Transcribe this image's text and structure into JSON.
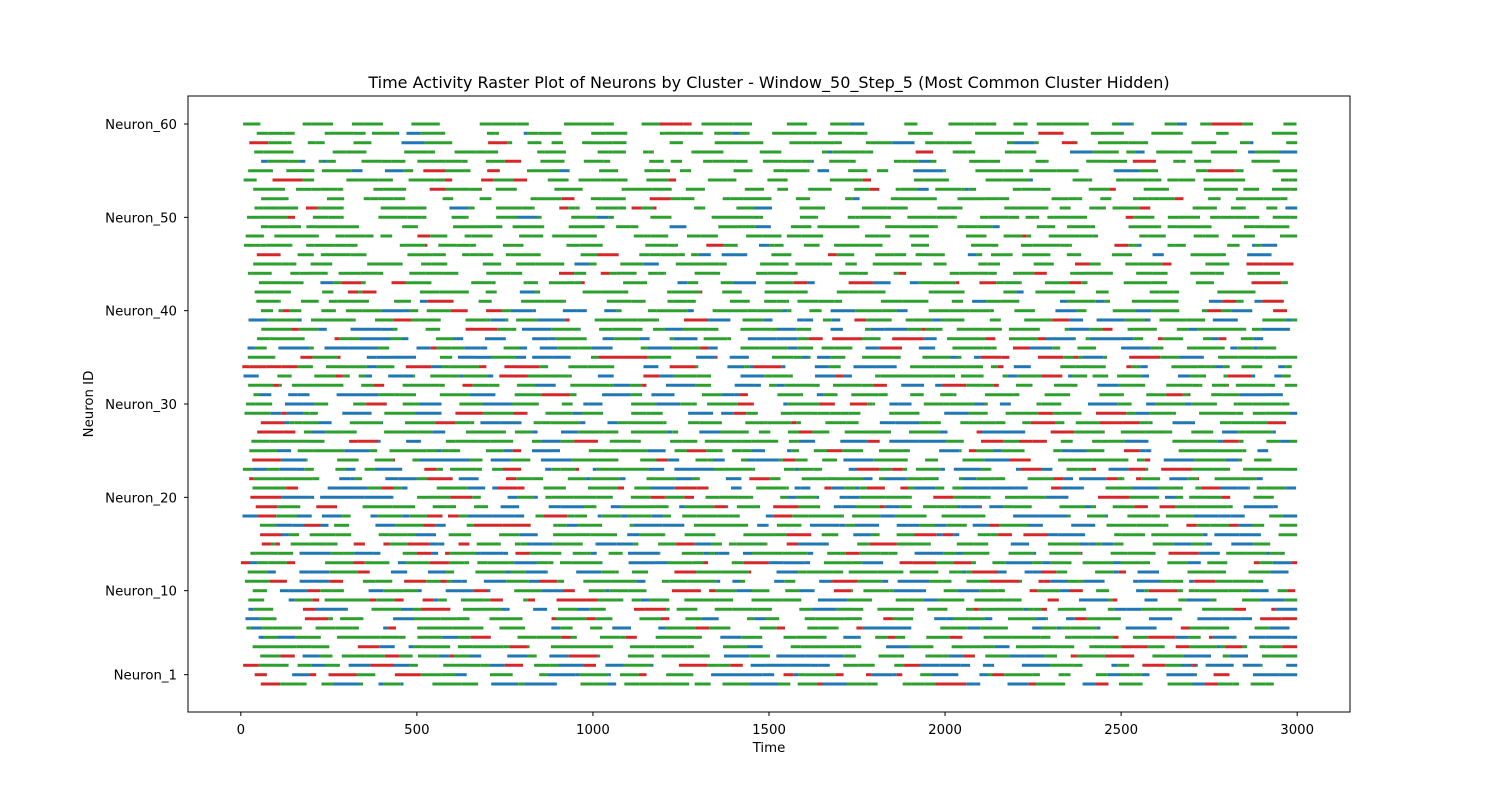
{
  "chart_data": {
    "type": "raster",
    "title": "Time Activity Raster Plot of Neurons by Cluster - Window_50_Step_5 (Most Common Cluster Hidden)",
    "xlabel": "Time",
    "ylabel": "Neuron ID",
    "xlim": [
      -150,
      3150
    ],
    "ylim": [
      -3,
      63
    ],
    "x_ticks": [
      0,
      500,
      1000,
      1500,
      2000,
      2500,
      3000
    ],
    "x_tick_labels": [
      "0",
      "500",
      "1000",
      "1500",
      "2000",
      "2500",
      "3000"
    ],
    "y_ticks": [
      1,
      10,
      20,
      30,
      40,
      50,
      60
    ],
    "y_tick_labels": [
      "Neuron_1",
      "Neuron_10",
      "Neuron_20",
      "Neuron_30",
      "Neuron_40",
      "Neuron_50",
      "Neuron_60"
    ],
    "neurons": 61,
    "time_range": [
      0,
      3000
    ],
    "legend": "none",
    "grid": false,
    "cluster_colors": {
      "cluster_a": "#2ca02c",
      "cluster_b": "#d62728",
      "cluster_c": "#1f77b4"
    },
    "colors": {
      "axis": "#000000",
      "background": "#ffffff"
    }
  }
}
